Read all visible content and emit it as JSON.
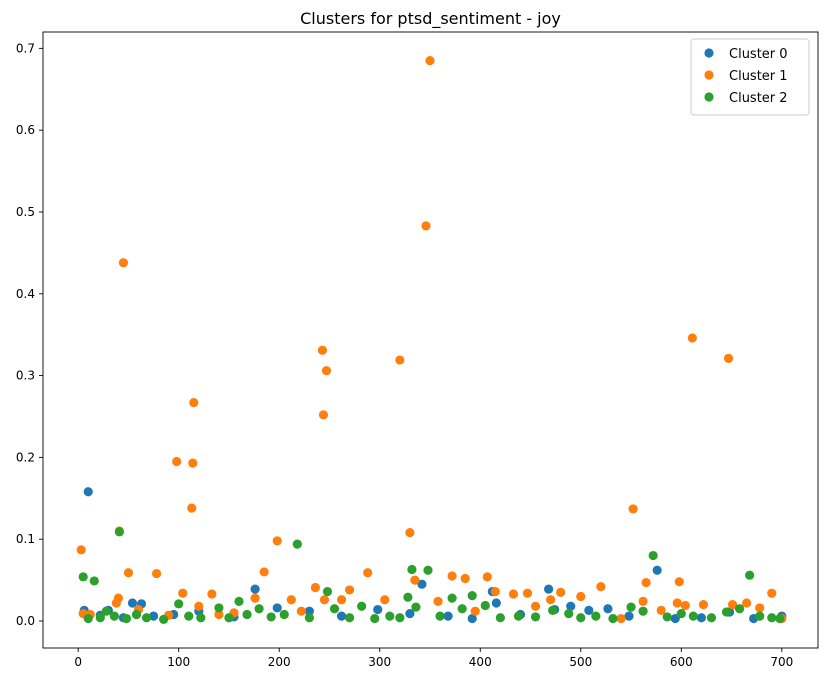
{
  "chart_data": {
    "type": "scatter",
    "title": "Clusters for ptsd_sentiment - joy",
    "xlabel": "",
    "ylabel": "",
    "xlim": [
      -35,
      736
    ],
    "ylim": [
      -0.033,
      0.72
    ],
    "xticks": [
      0,
      100,
      200,
      300,
      400,
      500,
      600,
      700
    ],
    "yticks": [
      0.0,
      0.1,
      0.2,
      0.3,
      0.4,
      0.5,
      0.6,
      0.7
    ],
    "grid": false,
    "legend_position": "top-right",
    "series": [
      {
        "name": "Cluster 0",
        "color": "#1f77b4",
        "points": [
          [
            6,
            0.013
          ],
          [
            10,
            0.158
          ],
          [
            22,
            0.007
          ],
          [
            30,
            0.013
          ],
          [
            45,
            0.004
          ],
          [
            54,
            0.022
          ],
          [
            63,
            0.021
          ],
          [
            75,
            0.006
          ],
          [
            95,
            0.008
          ],
          [
            120,
            0.012
          ],
          [
            155,
            0.005
          ],
          [
            176,
            0.039
          ],
          [
            198,
            0.016
          ],
          [
            230,
            0.012
          ],
          [
            262,
            0.006
          ],
          [
            298,
            0.014
          ],
          [
            330,
            0.009
          ],
          [
            342,
            0.045
          ],
          [
            368,
            0.006
          ],
          [
            392,
            0.003
          ],
          [
            412,
            0.036
          ],
          [
            416,
            0.022
          ],
          [
            440,
            0.008
          ],
          [
            468,
            0.039
          ],
          [
            474,
            0.014
          ],
          [
            490,
            0.018
          ],
          [
            508,
            0.013
          ],
          [
            527,
            0.015
          ],
          [
            548,
            0.006
          ],
          [
            576,
            0.062
          ],
          [
            594,
            0.003
          ],
          [
            620,
            0.004
          ],
          [
            648,
            0.011
          ],
          [
            672,
            0.003
          ],
          [
            700,
            0.006
          ]
        ]
      },
      {
        "name": "Cluster 1",
        "color": "#ff7f0e",
        "points": [
          [
            3,
            0.087
          ],
          [
            5,
            0.009
          ],
          [
            12,
            0.008
          ],
          [
            38,
            0.022
          ],
          [
            40,
            0.028
          ],
          [
            41,
            0.11
          ],
          [
            45,
            0.438
          ],
          [
            50,
            0.059
          ],
          [
            60,
            0.014
          ],
          [
            78,
            0.058
          ],
          [
            90,
            0.007
          ],
          [
            98,
            0.195
          ],
          [
            104,
            0.034
          ],
          [
            113,
            0.138
          ],
          [
            114,
            0.193
          ],
          [
            115,
            0.267
          ],
          [
            120,
            0.018
          ],
          [
            133,
            0.033
          ],
          [
            140,
            0.008
          ],
          [
            155,
            0.01
          ],
          [
            176,
            0.028
          ],
          [
            185,
            0.06
          ],
          [
            198,
            0.098
          ],
          [
            212,
            0.026
          ],
          [
            222,
            0.012
          ],
          [
            236,
            0.041
          ],
          [
            243,
            0.331
          ],
          [
            244,
            0.252
          ],
          [
            245,
            0.026
          ],
          [
            247,
            0.306
          ],
          [
            262,
            0.026
          ],
          [
            270,
            0.038
          ],
          [
            288,
            0.059
          ],
          [
            305,
            0.026
          ],
          [
            320,
            0.319
          ],
          [
            330,
            0.108
          ],
          [
            335,
            0.05
          ],
          [
            346,
            0.483
          ],
          [
            350,
            0.685
          ],
          [
            358,
            0.024
          ],
          [
            372,
            0.055
          ],
          [
            385,
            0.052
          ],
          [
            395,
            0.012
          ],
          [
            407,
            0.054
          ],
          [
            415,
            0.036
          ],
          [
            433,
            0.033
          ],
          [
            447,
            0.034
          ],
          [
            455,
            0.018
          ],
          [
            470,
            0.026
          ],
          [
            480,
            0.035
          ],
          [
            500,
            0.03
          ],
          [
            520,
            0.042
          ],
          [
            540,
            0.003
          ],
          [
            552,
            0.137
          ],
          [
            562,
            0.024
          ],
          [
            565,
            0.047
          ],
          [
            580,
            0.013
          ],
          [
            596,
            0.022
          ],
          [
            598,
            0.048
          ],
          [
            604,
            0.019
          ],
          [
            611,
            0.346
          ],
          [
            622,
            0.02
          ],
          [
            647,
            0.321
          ],
          [
            651,
            0.02
          ],
          [
            665,
            0.022
          ],
          [
            678,
            0.016
          ],
          [
            690,
            0.034
          ],
          [
            700,
            0.003
          ]
        ]
      },
      {
        "name": "Cluster 2",
        "color": "#2ca02c",
        "points": [
          [
            5,
            0.054
          ],
          [
            10,
            0.003
          ],
          [
            16,
            0.049
          ],
          [
            22,
            0.004
          ],
          [
            28,
            0.012
          ],
          [
            36,
            0.006
          ],
          [
            41,
            0.109
          ],
          [
            48,
            0.003
          ],
          [
            58,
            0.008
          ],
          [
            68,
            0.004
          ],
          [
            85,
            0.002
          ],
          [
            100,
            0.021
          ],
          [
            110,
            0.006
          ],
          [
            122,
            0.004
          ],
          [
            140,
            0.016
          ],
          [
            150,
            0.004
          ],
          [
            160,
            0.024
          ],
          [
            168,
            0.008
          ],
          [
            180,
            0.015
          ],
          [
            192,
            0.005
          ],
          [
            205,
            0.008
          ],
          [
            218,
            0.094
          ],
          [
            230,
            0.004
          ],
          [
            248,
            0.036
          ],
          [
            255,
            0.015
          ],
          [
            270,
            0.004
          ],
          [
            282,
            0.018
          ],
          [
            295,
            0.003
          ],
          [
            310,
            0.006
          ],
          [
            320,
            0.004
          ],
          [
            328,
            0.029
          ],
          [
            332,
            0.063
          ],
          [
            336,
            0.017
          ],
          [
            348,
            0.062
          ],
          [
            360,
            0.006
          ],
          [
            372,
            0.028
          ],
          [
            382,
            0.015
          ],
          [
            392,
            0.031
          ],
          [
            405,
            0.019
          ],
          [
            420,
            0.004
          ],
          [
            438,
            0.006
          ],
          [
            455,
            0.005
          ],
          [
            472,
            0.013
          ],
          [
            488,
            0.009
          ],
          [
            500,
            0.004
          ],
          [
            515,
            0.006
          ],
          [
            532,
            0.003
          ],
          [
            550,
            0.017
          ],
          [
            562,
            0.012
          ],
          [
            572,
            0.08
          ],
          [
            586,
            0.005
          ],
          [
            600,
            0.009
          ],
          [
            612,
            0.006
          ],
          [
            630,
            0.004
          ],
          [
            645,
            0.011
          ],
          [
            658,
            0.015
          ],
          [
            668,
            0.056
          ],
          [
            678,
            0.006
          ],
          [
            690,
            0.004
          ],
          [
            698,
            0.003
          ]
        ]
      }
    ]
  }
}
